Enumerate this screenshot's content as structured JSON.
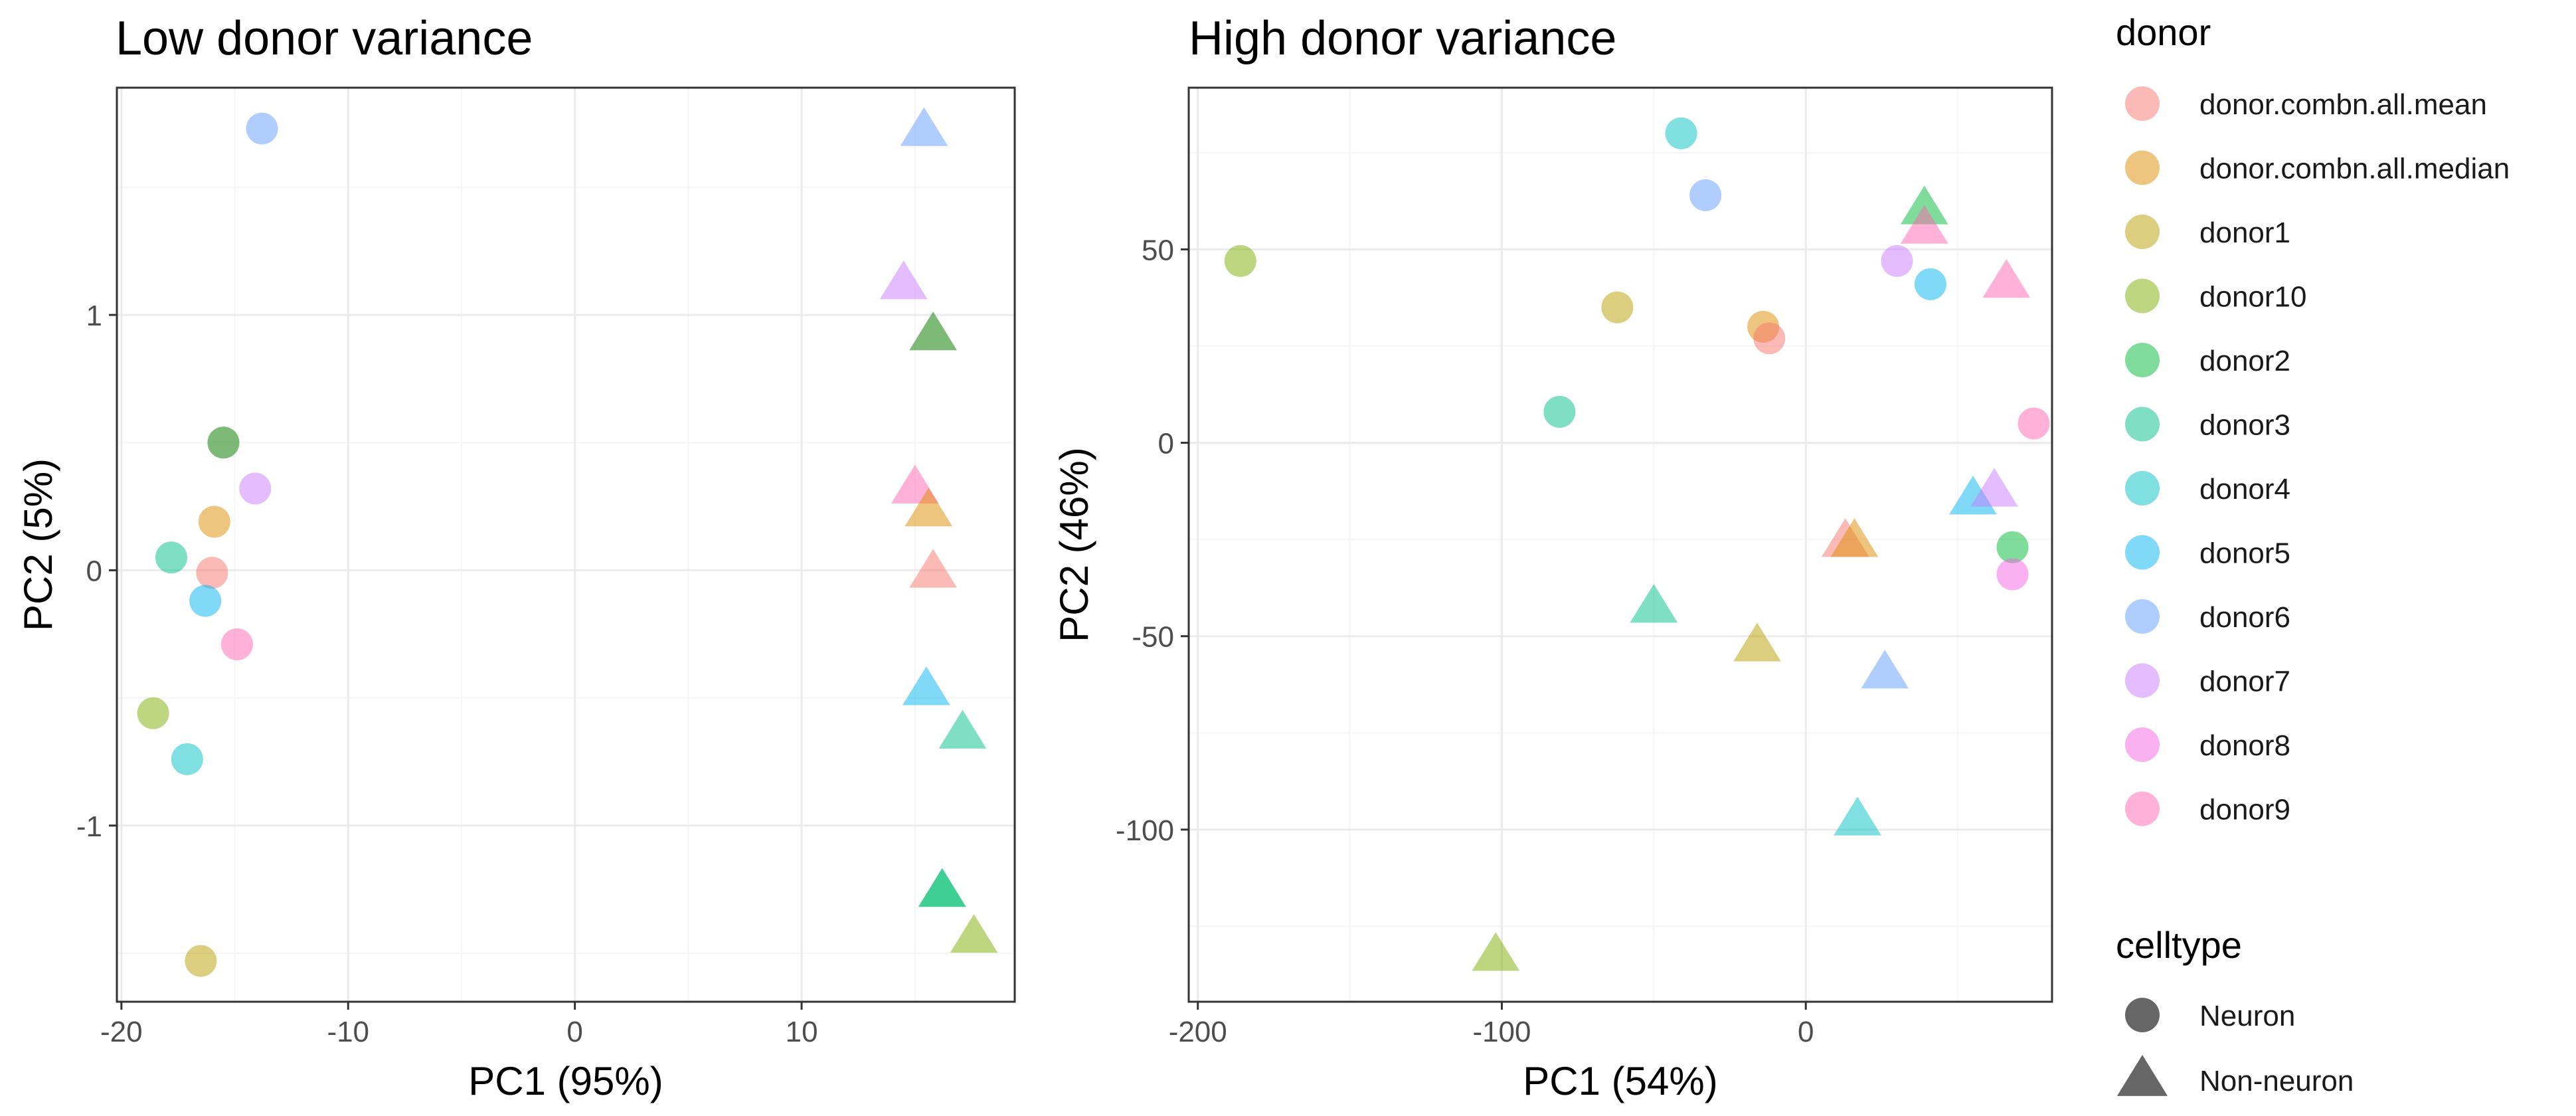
{
  "legend": {
    "donor_title": "donor",
    "celltype_title": "celltype",
    "donors": [
      {
        "name": "donor.combn.all.mean",
        "color": "#F8766D"
      },
      {
        "name": "donor.combn.all.median",
        "color": "#DE8C00"
      },
      {
        "name": "donor1",
        "color": "#B79F00"
      },
      {
        "name": "donor10",
        "color": "#7CAE00"
      },
      {
        "name": "donor2",
        "color": "#00BA38"
      },
      {
        "name": "donor3",
        "color": "#00C08B"
      },
      {
        "name": "donor4",
        "color": "#00BFC4"
      },
      {
        "name": "donor5",
        "color": "#00B4F0"
      },
      {
        "name": "donor6",
        "color": "#619CFF"
      },
      {
        "name": "donor7",
        "color": "#C77CFF"
      },
      {
        "name": "donor8",
        "color": "#F564E3"
      },
      {
        "name": "donor9",
        "color": "#FF64B0"
      }
    ],
    "celltypes": [
      {
        "name": "Neuron",
        "shape": "circle"
      },
      {
        "name": "Non-neuron",
        "shape": "triangle"
      }
    ]
  },
  "chart_data": [
    {
      "type": "scatter",
      "title": "Low donor variance",
      "xlabel": "PC1 (95%)",
      "ylabel": "PC2 (5%)",
      "xlim": [
        -20.2,
        19.4
      ],
      "ylim": [
        -1.69,
        1.89
      ],
      "xticks": [
        -20,
        -10,
        0,
        10
      ],
      "xtick_labels": [
        "-20",
        "-10",
        "0",
        "10"
      ],
      "yticks": [
        -1,
        0,
        1
      ],
      "ytick_labels": [
        "-1",
        "0",
        "1"
      ],
      "xminor": [
        -15,
        -5,
        5,
        15
      ],
      "yminor": [
        -1.5,
        -0.5,
        0.5,
        1.5
      ],
      "grid": true,
      "points": [
        {
          "donor": "donor6",
          "celltype": "Neuron",
          "x": -13.8,
          "y": 1.73
        },
        {
          "donor": "donor6",
          "celltype": "Non-neuron",
          "x": 15.4,
          "y": 1.73
        },
        {
          "donor": "donor7",
          "celltype": "Non-neuron",
          "x": 14.5,
          "y": 1.13
        },
        {
          "donor": "donor.combn.all.mean",
          "celltype": "Non-neuron",
          "x": 15.8,
          "y": 0.93
        },
        {
          "donor": "donor2",
          "celltype": "Non-neuron",
          "x": 15.8,
          "y": 0.93
        },
        {
          "donor": "donor.combn.all.mean",
          "celltype": "Neuron",
          "x": -15.5,
          "y": 0.5
        },
        {
          "donor": "donor2",
          "celltype": "Neuron",
          "x": -15.5,
          "y": 0.5
        },
        {
          "donor": "donor7",
          "celltype": "Neuron",
          "x": -14.1,
          "y": 0.32
        },
        {
          "donor": "donor9",
          "celltype": "Non-neuron",
          "x": 15.0,
          "y": 0.33
        },
        {
          "donor": "donor.combn.all.median",
          "celltype": "Non-neuron",
          "x": 15.6,
          "y": 0.24
        },
        {
          "donor": "donor.combn.all.median",
          "celltype": "Neuron",
          "x": -15.9,
          "y": 0.19
        },
        {
          "donor": "donor3",
          "celltype": "Neuron",
          "x": -17.8,
          "y": 0.05
        },
        {
          "donor": "donor.combn.all.mean",
          "celltype": "Neuron",
          "x": -16.0,
          "y": -0.01
        },
        {
          "donor": "donor.combn.all.mean",
          "celltype": "Non-neuron",
          "x": 15.8,
          "y": 0.0
        },
        {
          "donor": "donor5",
          "celltype": "Neuron",
          "x": -16.3,
          "y": -0.12
        },
        {
          "donor": "donor9",
          "celltype": "Neuron",
          "x": -14.9,
          "y": -0.29
        },
        {
          "donor": "donor5",
          "celltype": "Non-neuron",
          "x": 15.5,
          "y": -0.46
        },
        {
          "donor": "donor3",
          "celltype": "Non-neuron",
          "x": 17.1,
          "y": -0.63
        },
        {
          "donor": "donor10",
          "celltype": "Neuron",
          "x": -18.6,
          "y": -0.56
        },
        {
          "donor": "donor4",
          "celltype": "Neuron",
          "x": -17.1,
          "y": -0.74
        },
        {
          "donor": "donor2",
          "celltype": "Non-neuron",
          "x": 16.2,
          "y": -1.25
        },
        {
          "donor": "donor3",
          "celltype": "Non-neuron",
          "x": 16.2,
          "y": -1.25
        },
        {
          "donor": "donor10",
          "celltype": "Non-neuron",
          "x": 17.6,
          "y": -1.43
        },
        {
          "donor": "donor1",
          "celltype": "Neuron",
          "x": -16.5,
          "y": -1.53
        }
      ]
    },
    {
      "type": "scatter",
      "title": "High donor variance",
      "xlabel": "PC1 (54%)",
      "ylabel": "PC2 (46%)",
      "xlim": [
        -203,
        81
      ],
      "ylim": [
        -144.5,
        91.8
      ],
      "xticks": [
        -200,
        -100,
        0
      ],
      "xtick_labels": [
        "-200",
        "-100",
        "0"
      ],
      "yticks": [
        -100,
        -50,
        0,
        50
      ],
      "ytick_labels": [
        "-100",
        "-50",
        "0",
        "50"
      ],
      "xminor": [
        -150,
        -50,
        50
      ],
      "yminor": [
        -125,
        -75,
        -25,
        25,
        75
      ],
      "grid": true,
      "points": [
        {
          "donor": "donor4",
          "celltype": "Neuron",
          "x": -41,
          "y": 80
        },
        {
          "donor": "donor6",
          "celltype": "Neuron",
          "x": -33,
          "y": 64
        },
        {
          "donor": "donor2",
          "celltype": "Non-neuron",
          "x": 39,
          "y": 61
        },
        {
          "donor": "donor10",
          "celltype": "Neuron",
          "x": -186,
          "y": 47
        },
        {
          "donor": "donor9",
          "celltype": "Non-neuron",
          "x": 39,
          "y": 56
        },
        {
          "donor": "donor7",
          "celltype": "Neuron",
          "x": 30,
          "y": 47
        },
        {
          "donor": "donor5",
          "celltype": "Neuron",
          "x": 41,
          "y": 41
        },
        {
          "donor": "donor9",
          "celltype": "Non-neuron",
          "x": 66,
          "y": 42
        },
        {
          "donor": "donor1",
          "celltype": "Neuron",
          "x": -62,
          "y": 35
        },
        {
          "donor": "donor.combn.all.median",
          "celltype": "Neuron",
          "x": -14,
          "y": 30
        },
        {
          "donor": "donor.combn.all.mean",
          "celltype": "Neuron",
          "x": -12,
          "y": 27
        },
        {
          "donor": "donor3",
          "celltype": "Neuron",
          "x": -81,
          "y": 8
        },
        {
          "donor": "donor9",
          "celltype": "Neuron",
          "x": 75,
          "y": 5
        },
        {
          "donor": "donor5",
          "celltype": "Non-neuron",
          "x": 55,
          "y": -14
        },
        {
          "donor": "donor7",
          "celltype": "Non-neuron",
          "x": 62,
          "y": -12
        },
        {
          "donor": "donor.combn.all.mean",
          "celltype": "Non-neuron",
          "x": 13,
          "y": -25
        },
        {
          "donor": "donor.combn.all.median",
          "celltype": "Non-neuron",
          "x": 16,
          "y": -25
        },
        {
          "donor": "donor2",
          "celltype": "Neuron",
          "x": 68,
          "y": -27
        },
        {
          "donor": "donor8",
          "celltype": "Neuron",
          "x": 68,
          "y": -34
        },
        {
          "donor": "donor3",
          "celltype": "Non-neuron",
          "x": -50,
          "y": -42
        },
        {
          "donor": "donor1",
          "celltype": "Non-neuron",
          "x": -16,
          "y": -52
        },
        {
          "donor": "donor6",
          "celltype": "Non-neuron",
          "x": 26,
          "y": -59
        },
        {
          "donor": "donor4",
          "celltype": "Non-neuron",
          "x": 17,
          "y": -97
        },
        {
          "donor": "donor10",
          "celltype": "Non-neuron",
          "x": -102,
          "y": -132
        }
      ]
    }
  ]
}
